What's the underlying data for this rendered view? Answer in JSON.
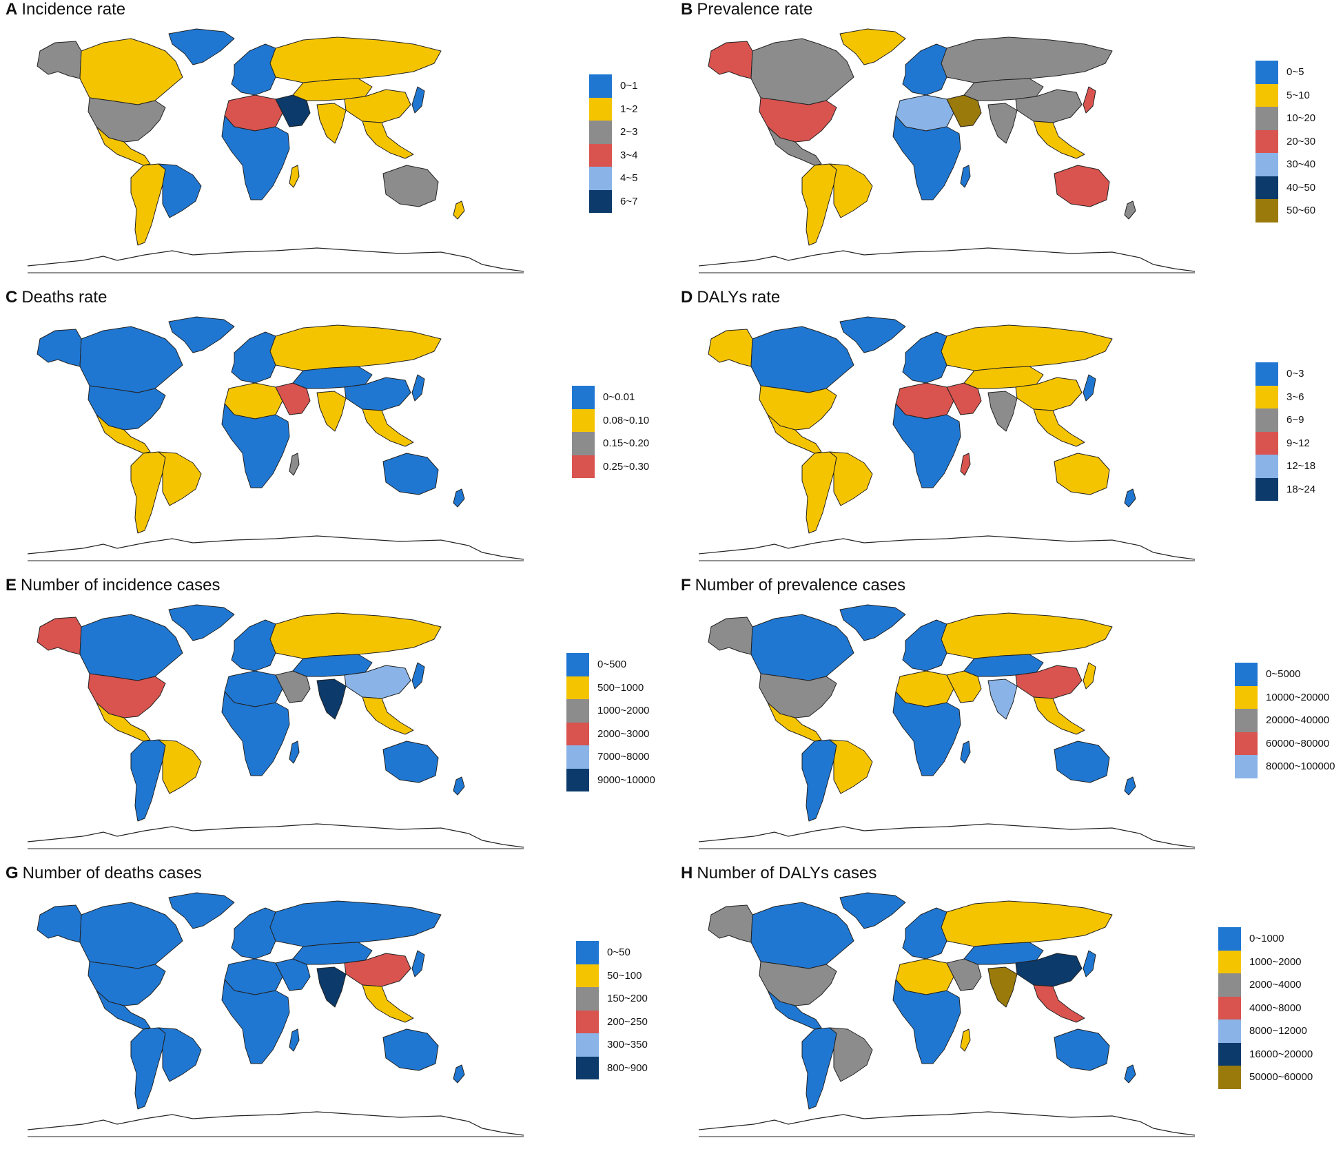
{
  "palette": {
    "blue": "#1f77d2",
    "yellow": "#f5c400",
    "gray": "#8c8c8c",
    "red": "#d9534f",
    "lightblue": "#8ab4e8",
    "navy": "#0b3a6b",
    "olive": "#9a7a0a"
  },
  "panels": [
    {
      "id": "A",
      "letter": "A",
      "title": "Incidence rate",
      "legend": [
        {
          "label": "0~1",
          "color": "#1f77d2"
        },
        {
          "label": "1~2",
          "color": "#f5c400"
        },
        {
          "label": "2~3",
          "color": "#8c8c8c"
        },
        {
          "label": "3~4",
          "color": "#d9534f"
        },
        {
          "label": "4~5",
          "color": "#8ab4e8"
        },
        {
          "label": "6~7",
          "color": "#0b3a6b"
        }
      ],
      "regions": {
        "north_america": "#8c8c8c",
        "alaska": "#8c8c8c",
        "canada": "#f5c400",
        "greenland": "#1f77d2",
        "central_america": "#f5c400",
        "south_america": "#f5c400",
        "brazil": "#1f77d2",
        "europe": "#1f77d2",
        "north_africa": "#d9534f",
        "africa": "#1f77d2",
        "middle_east": "#0b3a6b",
        "russia": "#f5c400",
        "asia": "#f5c400",
        "china": "#f5c400",
        "india": "#f5c400",
        "southeast_asia": "#f5c400",
        "japan": "#1f77d2",
        "australia": "#8c8c8c",
        "new_zealand": "#f5c400",
        "madagascar": "#f5c400"
      }
    },
    {
      "id": "B",
      "letter": "B",
      "title": "Prevalence rate",
      "legend": [
        {
          "label": "0~5",
          "color": "#1f77d2"
        },
        {
          "label": "5~10",
          "color": "#f5c400"
        },
        {
          "label": "10~20",
          "color": "#8c8c8c"
        },
        {
          "label": "20~30",
          "color": "#d9534f"
        },
        {
          "label": "30~40",
          "color": "#8ab4e8"
        },
        {
          "label": "40~50",
          "color": "#0b3a6b"
        },
        {
          "label": "50~60",
          "color": "#9a7a0a"
        }
      ],
      "regions": {
        "north_america": "#d9534f",
        "alaska": "#d9534f",
        "canada": "#8c8c8c",
        "greenland": "#f5c400",
        "central_america": "#8c8c8c",
        "south_america": "#f5c400",
        "brazil": "#f5c400",
        "europe": "#1f77d2",
        "north_africa": "#8ab4e8",
        "africa": "#1f77d2",
        "middle_east": "#9a7a0a",
        "russia": "#8c8c8c",
        "asia": "#8c8c8c",
        "china": "#8c8c8c",
        "india": "#8c8c8c",
        "southeast_asia": "#f5c400",
        "japan": "#d9534f",
        "australia": "#d9534f",
        "new_zealand": "#8c8c8c",
        "madagascar": "#1f77d2"
      }
    },
    {
      "id": "C",
      "letter": "C",
      "title": "Deaths rate",
      "legend": [
        {
          "label": "0~0.01",
          "color": "#1f77d2"
        },
        {
          "label": "0.08~0.10",
          "color": "#f5c400"
        },
        {
          "label": "0.15~0.20",
          "color": "#8c8c8c"
        },
        {
          "label": "0.25~0.30",
          "color": "#d9534f"
        }
      ],
      "regions": {
        "north_america": "#1f77d2",
        "alaska": "#1f77d2",
        "canada": "#1f77d2",
        "greenland": "#1f77d2",
        "central_america": "#f5c400",
        "south_america": "#f5c400",
        "brazil": "#f5c400",
        "europe": "#1f77d2",
        "north_africa": "#f5c400",
        "africa": "#1f77d2",
        "middle_east": "#d9534f",
        "russia": "#f5c400",
        "asia": "#1f77d2",
        "china": "#1f77d2",
        "india": "#f5c400",
        "southeast_asia": "#f5c400",
        "japan": "#1f77d2",
        "australia": "#1f77d2",
        "new_zealand": "#1f77d2",
        "madagascar": "#8c8c8c"
      }
    },
    {
      "id": "D",
      "letter": "D",
      "title": "DALYs rate",
      "legend": [
        {
          "label": "0~3",
          "color": "#1f77d2"
        },
        {
          "label": "3~6",
          "color": "#f5c400"
        },
        {
          "label": "6~9",
          "color": "#8c8c8c"
        },
        {
          "label": "9~12",
          "color": "#d9534f"
        },
        {
          "label": "12~18",
          "color": "#8ab4e8"
        },
        {
          "label": "18~24",
          "color": "#0b3a6b"
        }
      ],
      "regions": {
        "north_america": "#f5c400",
        "alaska": "#f5c400",
        "canada": "#1f77d2",
        "greenland": "#1f77d2",
        "central_america": "#f5c400",
        "south_america": "#f5c400",
        "brazil": "#f5c400",
        "europe": "#1f77d2",
        "north_africa": "#d9534f",
        "africa": "#1f77d2",
        "middle_east": "#d9534f",
        "russia": "#f5c400",
        "asia": "#f5c400",
        "china": "#f5c400",
        "india": "#8c8c8c",
        "southeast_asia": "#f5c400",
        "japan": "#1f77d2",
        "australia": "#f5c400",
        "new_zealand": "#1f77d2",
        "madagascar": "#d9534f"
      }
    },
    {
      "id": "E",
      "letter": "E",
      "title": "Number of incidence cases",
      "legend": [
        {
          "label": "0~500",
          "color": "#1f77d2"
        },
        {
          "label": "500~1000",
          "color": "#f5c400"
        },
        {
          "label": "1000~2000",
          "color": "#8c8c8c"
        },
        {
          "label": "2000~3000",
          "color": "#d9534f"
        },
        {
          "label": "7000~8000",
          "color": "#8ab4e8"
        },
        {
          "label": "9000~10000",
          "color": "#0b3a6b"
        }
      ],
      "regions": {
        "north_america": "#d9534f",
        "alaska": "#d9534f",
        "canada": "#1f77d2",
        "greenland": "#1f77d2",
        "central_america": "#f5c400",
        "south_america": "#1f77d2",
        "brazil": "#f5c400",
        "europe": "#1f77d2",
        "north_africa": "#1f77d2",
        "africa": "#1f77d2",
        "middle_east": "#8c8c8c",
        "russia": "#f5c400",
        "asia": "#1f77d2",
        "china": "#8ab4e8",
        "india": "#0b3a6b",
        "southeast_asia": "#f5c400",
        "japan": "#1f77d2",
        "australia": "#1f77d2",
        "new_zealand": "#1f77d2",
        "madagascar": "#1f77d2"
      }
    },
    {
      "id": "F",
      "letter": "F",
      "title": "Number of prevalence cases",
      "legend": [
        {
          "label": "0~5000",
          "color": "#1f77d2"
        },
        {
          "label": "10000~20000",
          "color": "#f5c400"
        },
        {
          "label": "20000~40000",
          "color": "#8c8c8c"
        },
        {
          "label": "60000~80000",
          "color": "#d9534f"
        },
        {
          "label": "80000~100000",
          "color": "#8ab4e8"
        }
      ],
      "regions": {
        "north_america": "#8c8c8c",
        "alaska": "#8c8c8c",
        "canada": "#1f77d2",
        "greenland": "#1f77d2",
        "central_america": "#f5c400",
        "south_america": "#1f77d2",
        "brazil": "#f5c400",
        "europe": "#1f77d2",
        "north_africa": "#f5c400",
        "africa": "#1f77d2",
        "middle_east": "#f5c400",
        "russia": "#f5c400",
        "asia": "#1f77d2",
        "china": "#d9534f",
        "india": "#8ab4e8",
        "southeast_asia": "#f5c400",
        "japan": "#f5c400",
        "australia": "#1f77d2",
        "new_zealand": "#1f77d2",
        "madagascar": "#1f77d2"
      }
    },
    {
      "id": "G",
      "letter": "G",
      "title": "Number of deaths cases",
      "legend": [
        {
          "label": "0~50",
          "color": "#1f77d2"
        },
        {
          "label": "50~100",
          "color": "#f5c400"
        },
        {
          "label": "150~200",
          "color": "#8c8c8c"
        },
        {
          "label": "200~250",
          "color": "#d9534f"
        },
        {
          "label": "300~350",
          "color": "#8ab4e8"
        },
        {
          "label": "800~900",
          "color": "#0b3a6b"
        }
      ],
      "regions": {
        "north_america": "#1f77d2",
        "alaska": "#1f77d2",
        "canada": "#1f77d2",
        "greenland": "#1f77d2",
        "central_america": "#1f77d2",
        "south_america": "#1f77d2",
        "brazil": "#1f77d2",
        "europe": "#1f77d2",
        "north_africa": "#1f77d2",
        "africa": "#1f77d2",
        "middle_east": "#1f77d2",
        "russia": "#1f77d2",
        "asia": "#1f77d2",
        "china": "#d9534f",
        "india": "#0b3a6b",
        "southeast_asia": "#f5c400",
        "japan": "#1f77d2",
        "australia": "#1f77d2",
        "new_zealand": "#1f77d2",
        "madagascar": "#1f77d2"
      }
    },
    {
      "id": "H",
      "letter": "H",
      "title": "Number of DALYs cases",
      "legend": [
        {
          "label": "0~1000",
          "color": "#1f77d2"
        },
        {
          "label": "1000~2000",
          "color": "#f5c400"
        },
        {
          "label": "2000~4000",
          "color": "#8c8c8c"
        },
        {
          "label": "4000~8000",
          "color": "#d9534f"
        },
        {
          "label": "8000~12000",
          "color": "#8ab4e8"
        },
        {
          "label": "16000~20000",
          "color": "#0b3a6b"
        },
        {
          "label": "50000~60000",
          "color": "#9a7a0a"
        }
      ],
      "regions": {
        "north_america": "#8c8c8c",
        "alaska": "#8c8c8c",
        "canada": "#1f77d2",
        "greenland": "#1f77d2",
        "central_america": "#1f77d2",
        "south_america": "#1f77d2",
        "brazil": "#8c8c8c",
        "europe": "#1f77d2",
        "north_africa": "#f5c400",
        "africa": "#1f77d2",
        "middle_east": "#8c8c8c",
        "russia": "#f5c400",
        "asia": "#1f77d2",
        "china": "#0b3a6b",
        "india": "#9a7a0a",
        "southeast_asia": "#d9534f",
        "japan": "#1f77d2",
        "australia": "#1f77d2",
        "new_zealand": "#1f77d2",
        "madagascar": "#f5c400"
      }
    }
  ]
}
